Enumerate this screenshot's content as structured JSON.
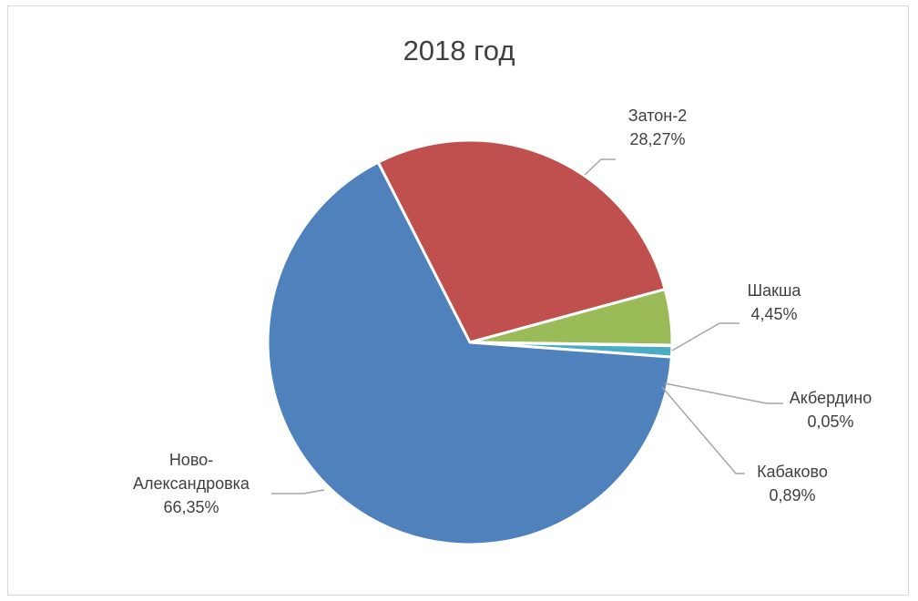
{
  "chart_data": {
    "type": "pie",
    "title": "2018 год",
    "slices": [
      {
        "name": "Затон-2",
        "label_lines": [
          "Затон-2"
        ],
        "value_label": "28,27%",
        "value": 28.27,
        "color": "#c0504d"
      },
      {
        "name": "Шакша",
        "label_lines": [
          "Шакша"
        ],
        "value_label": "4,45%",
        "value": 4.45,
        "color": "#9bbb59"
      },
      {
        "name": "Акбердино",
        "label_lines": [
          "Акбердино"
        ],
        "value_label": "0,05%",
        "value": 0.05,
        "color": "#8064a2"
      },
      {
        "name": "Кабаково",
        "label_lines": [
          "Кабаково"
        ],
        "value_label": "0,89%",
        "value": 0.89,
        "color": "#4bacc6"
      },
      {
        "name": "Ново-Александровка",
        "label_lines": [
          "Ново-",
          "Александровка"
        ],
        "value_label": "66,35%",
        "value": 66.35,
        "color": "#4f81bd"
      }
    ],
    "legend": "none"
  }
}
